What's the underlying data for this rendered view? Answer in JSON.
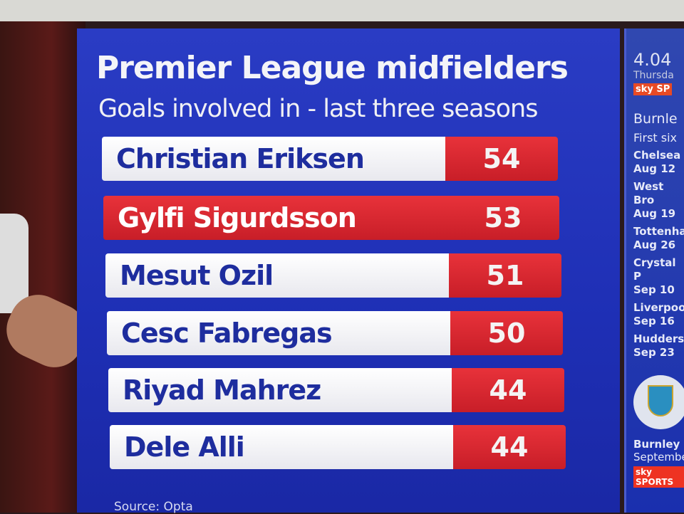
{
  "graphic": {
    "title": "Premier League midfielders",
    "subtitle": "Goals involved in - last three seasons",
    "source": "Source: Opta",
    "highlight_color": "#d42630",
    "accent_blue": "#1e2fb5",
    "rows": [
      {
        "name": "Christian Eriksen",
        "value": "54"
      },
      {
        "name": "Gylfi Sigurdsson",
        "value": "53",
        "highlighted": true
      },
      {
        "name": "Mesut Ozil",
        "value": "51"
      },
      {
        "name": "Cesc Fabregas",
        "value": "50"
      },
      {
        "name": "Riyad Mahrez",
        "value": "44"
      },
      {
        "name": "Dele Alli",
        "value": "44"
      }
    ]
  },
  "sidebar": {
    "time": "4.04",
    "day": "Thursda",
    "channel_logo": "sky SP",
    "team": "Burnle",
    "first_six": "First six",
    "fixtures": [
      {
        "opponent": "Chelsea",
        "date": "Aug 12"
      },
      {
        "opponent": "West Bro",
        "date": "Aug 19"
      },
      {
        "opponent": "Tottenha",
        "date": "Aug 26"
      },
      {
        "opponent": "Crystal P",
        "date": "Sep 10"
      },
      {
        "opponent": "Liverpool",
        "date": "Sep 16"
      },
      {
        "opponent": "Huddersf",
        "date": "Sep 23"
      }
    ],
    "crest": "burnley-crest",
    "bottom_team": "Burnley",
    "bottom_sub": "September",
    "bottom_logo": "sky SPORTS"
  }
}
